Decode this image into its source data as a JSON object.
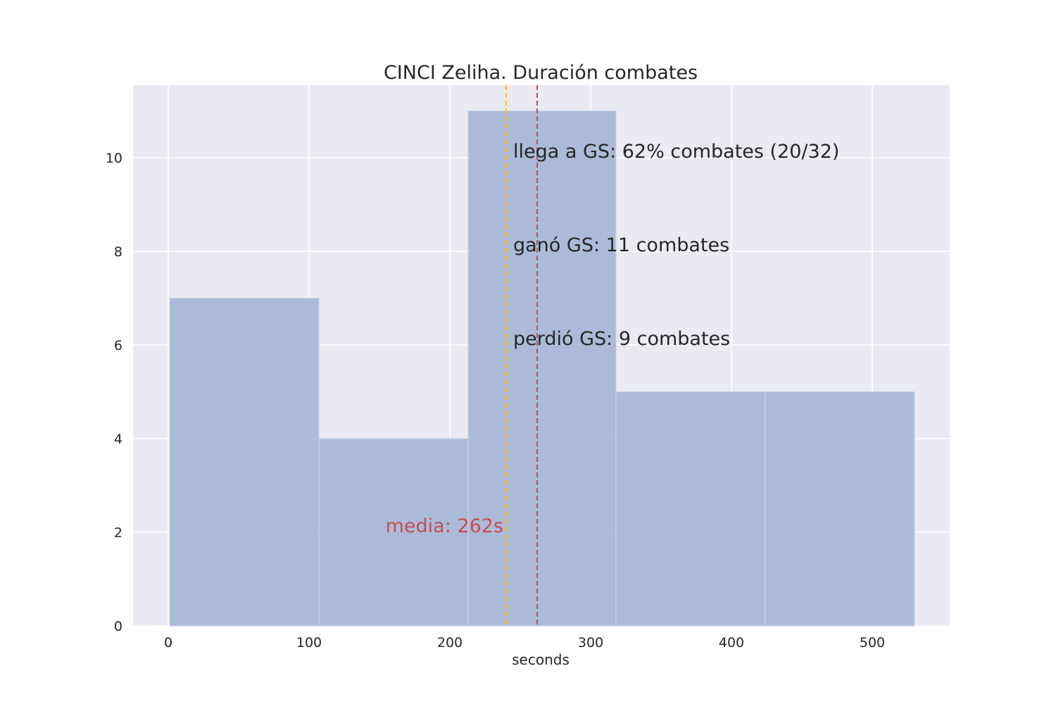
{
  "chart_data": {
    "type": "bar",
    "title": "CINCI Zeliha. Duración combates",
    "xlabel": "seconds",
    "ylabel": "",
    "xlim": [
      -25,
      555
    ],
    "ylim": [
      0,
      11.55
    ],
    "xticks": [
      0,
      100,
      200,
      300,
      400,
      500
    ],
    "yticks": [
      0,
      2,
      4,
      6,
      8,
      10
    ],
    "grid": true,
    "bins": [
      {
        "start": 1,
        "end": 107,
        "count": 7
      },
      {
        "start": 107,
        "end": 213,
        "count": 4
      },
      {
        "start": 213,
        "end": 318,
        "count": 11
      },
      {
        "start": 318,
        "end": 424,
        "count": 5
      },
      {
        "start": 424,
        "end": 530,
        "count": 5
      }
    ],
    "vlines": [
      {
        "x": 240,
        "color": "#f5c518",
        "style": "dashed"
      },
      {
        "x": 262,
        "color": "#c44e52",
        "style": "dashed"
      }
    ],
    "annotations": [
      {
        "text": "llega a GS: 62% combates (20/32)",
        "x": 245,
        "y": 10.0,
        "color": "#262626",
        "anchor": "start"
      },
      {
        "text": "ganó GS: 11 combates",
        "x": 245,
        "y": 8.0,
        "color": "#262626",
        "anchor": "start"
      },
      {
        "text": "perdió GS: 9 combates",
        "x": 245,
        "y": 6.0,
        "color": "#262626",
        "anchor": "start"
      },
      {
        "text": "media: 262s",
        "x": 238,
        "y": 2.0,
        "color": "#c44e52",
        "anchor": "end"
      }
    ],
    "colors": {
      "bar": "#a5b5d6",
      "bar_edge": "#c8d2e6",
      "plot_bg": "#eaeaf2",
      "grid": "#ffffff",
      "mean_text": "#c44e52"
    }
  }
}
